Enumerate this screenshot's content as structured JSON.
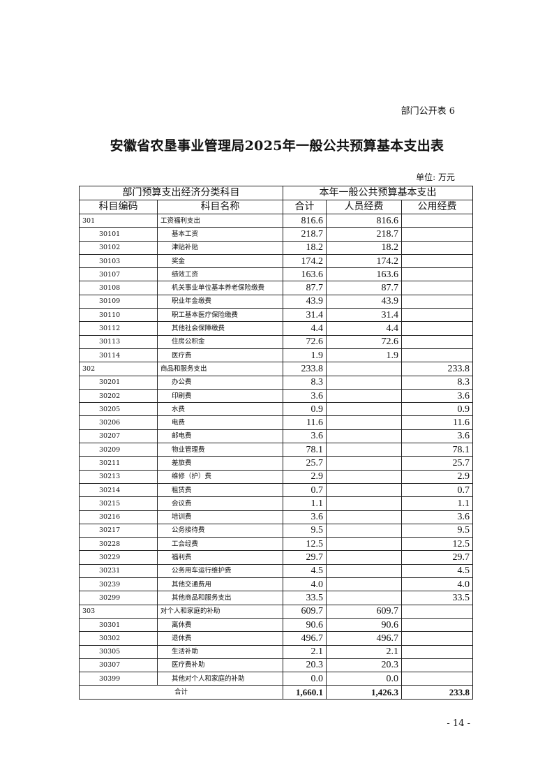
{
  "doc_tag": "部门公开表 6",
  "title": "安徽省农垦事业管理局2025年一般公共预算基本支出表",
  "unit": "单位: 万元",
  "header": {
    "group_left": "部门预算支出经济分类科目",
    "group_right": "本年一般公共预算基本支出",
    "code": "科目编码",
    "name": "科目名称",
    "total": "合计",
    "personnel": "人员经费",
    "public": "公用经费"
  },
  "rows": [
    {
      "code": "301",
      "name": "工资福利支出",
      "total": "816.6",
      "personnel": "816.6",
      "public": "",
      "level": 1
    },
    {
      "code": "30101",
      "name": "基本工资",
      "total": "218.7",
      "personnel": "218.7",
      "public": "",
      "level": 2
    },
    {
      "code": "30102",
      "name": "津贴补贴",
      "total": "18.2",
      "personnel": "18.2",
      "public": "",
      "level": 2
    },
    {
      "code": "30103",
      "name": "奖金",
      "total": "174.2",
      "personnel": "174.2",
      "public": "",
      "level": 2
    },
    {
      "code": "30107",
      "name": "绩效工资",
      "total": "163.6",
      "personnel": "163.6",
      "public": "",
      "level": 2
    },
    {
      "code": "30108",
      "name": "机关事业单位基本养老保险缴费",
      "total": "87.7",
      "personnel": "87.7",
      "public": "",
      "level": 2
    },
    {
      "code": "30109",
      "name": "职业年金缴费",
      "total": "43.9",
      "personnel": "43.9",
      "public": "",
      "level": 2
    },
    {
      "code": "30110",
      "name": "职工基本医疗保险缴费",
      "total": "31.4",
      "personnel": "31.4",
      "public": "",
      "level": 2
    },
    {
      "code": "30112",
      "name": "其他社会保障缴费",
      "total": "4.4",
      "personnel": "4.4",
      "public": "",
      "level": 2
    },
    {
      "code": "30113",
      "name": "住房公积金",
      "total": "72.6",
      "personnel": "72.6",
      "public": "",
      "level": 2
    },
    {
      "code": "30114",
      "name": "医疗费",
      "total": "1.9",
      "personnel": "1.9",
      "public": "",
      "level": 2
    },
    {
      "code": "302",
      "name": "商品和服务支出",
      "total": "233.8",
      "personnel": "",
      "public": "233.8",
      "level": 1
    },
    {
      "code": "30201",
      "name": "办公费",
      "total": "8.3",
      "personnel": "",
      "public": "8.3",
      "level": 2
    },
    {
      "code": "30202",
      "name": "印刷费",
      "total": "3.6",
      "personnel": "",
      "public": "3.6",
      "level": 2
    },
    {
      "code": "30205",
      "name": "水费",
      "total": "0.9",
      "personnel": "",
      "public": "0.9",
      "level": 2
    },
    {
      "code": "30206",
      "name": "电费",
      "total": "11.6",
      "personnel": "",
      "public": "11.6",
      "level": 2
    },
    {
      "code": "30207",
      "name": "邮电费",
      "total": "3.6",
      "personnel": "",
      "public": "3.6",
      "level": 2
    },
    {
      "code": "30209",
      "name": "物业管理费",
      "total": "78.1",
      "personnel": "",
      "public": "78.1",
      "level": 2
    },
    {
      "code": "30211",
      "name": "差旅费",
      "total": "25.7",
      "personnel": "",
      "public": "25.7",
      "level": 2
    },
    {
      "code": "30213",
      "name": "维修（护）费",
      "total": "2.9",
      "personnel": "",
      "public": "2.9",
      "level": 2
    },
    {
      "code": "30214",
      "name": "租赁费",
      "total": "0.7",
      "personnel": "",
      "public": "0.7",
      "level": 2
    },
    {
      "code": "30215",
      "name": "会议费",
      "total": "1.1",
      "personnel": "",
      "public": "1.1",
      "level": 2
    },
    {
      "code": "30216",
      "name": "培训费",
      "total": "3.6",
      "personnel": "",
      "public": "3.6",
      "level": 2
    },
    {
      "code": "30217",
      "name": "公务接待费",
      "total": "9.5",
      "personnel": "",
      "public": "9.5",
      "level": 2
    },
    {
      "code": "30228",
      "name": "工会经费",
      "total": "12.5",
      "personnel": "",
      "public": "12.5",
      "level": 2
    },
    {
      "code": "30229",
      "name": "福利费",
      "total": "29.7",
      "personnel": "",
      "public": "29.7",
      "level": 2
    },
    {
      "code": "30231",
      "name": "公务用车运行维护费",
      "total": "4.5",
      "personnel": "",
      "public": "4.5",
      "level": 2
    },
    {
      "code": "30239",
      "name": "其他交通费用",
      "total": "4.0",
      "personnel": "",
      "public": "4.0",
      "level": 2
    },
    {
      "code": "30299",
      "name": "其他商品和服务支出",
      "total": "33.5",
      "personnel": "",
      "public": "33.5",
      "level": 2
    },
    {
      "code": "303",
      "name": "对个人和家庭的补助",
      "total": "609.7",
      "personnel": "609.7",
      "public": "",
      "level": 1
    },
    {
      "code": "30301",
      "name": "离休费",
      "total": "90.6",
      "personnel": "90.6",
      "public": "",
      "level": 2
    },
    {
      "code": "30302",
      "name": "退休费",
      "total": "496.7",
      "personnel": "496.7",
      "public": "",
      "level": 2
    },
    {
      "code": "30305",
      "name": "生活补助",
      "total": "2.1",
      "personnel": "2.1",
      "public": "",
      "level": 2
    },
    {
      "code": "30307",
      "name": "医疗费补助",
      "total": "20.3",
      "personnel": "20.3",
      "public": "",
      "level": 2
    },
    {
      "code": "30399",
      "name": "其他对个人和家庭的补助",
      "total": "0.0",
      "personnel": "0.0",
      "public": "",
      "level": 2
    }
  ],
  "total_row": {
    "label": "合计",
    "total": "1,660.1",
    "personnel": "1,426.3",
    "public": "233.8"
  },
  "page_number": "- 14 -"
}
